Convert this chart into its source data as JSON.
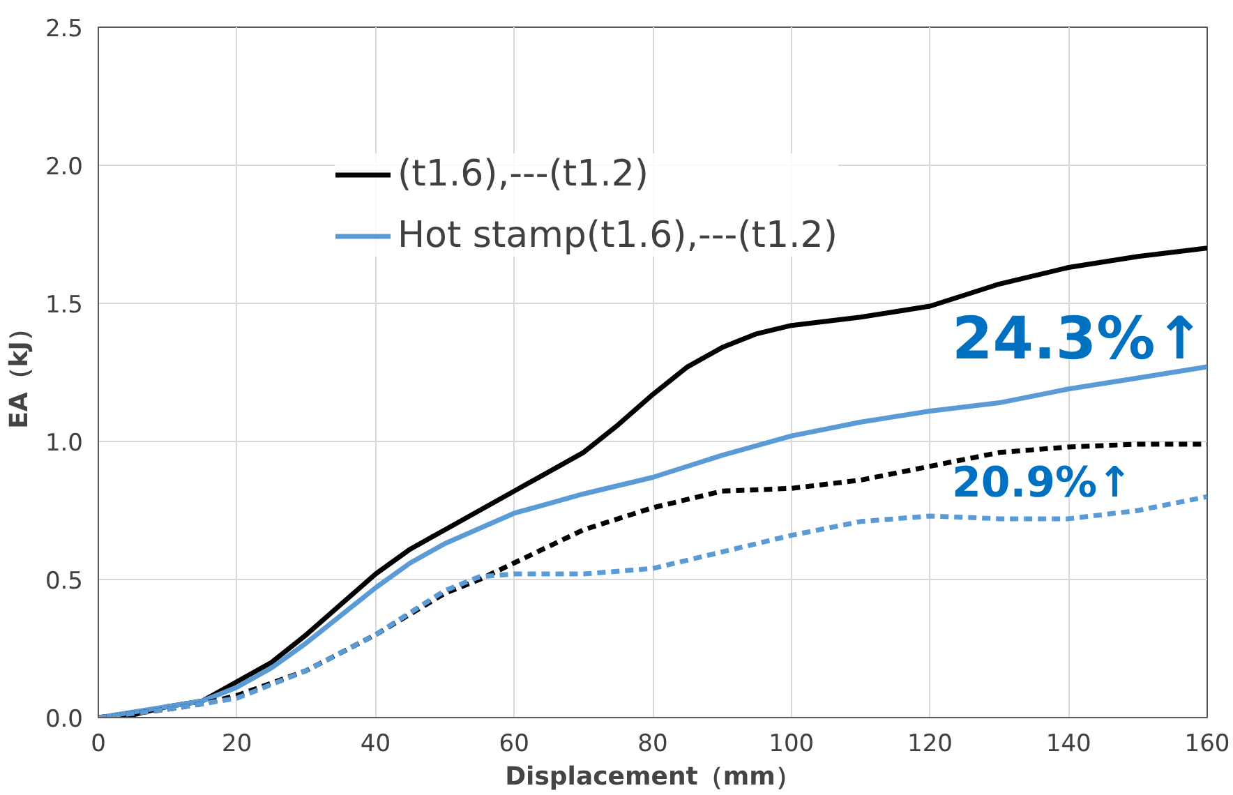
{
  "chart_data": {
    "type": "line",
    "xlabel": "Displacement（mm）",
    "ylabel": "EA（kJ）",
    "xlim": [
      0,
      160
    ],
    "xticks": [
      0,
      20,
      40,
      60,
      80,
      100,
      120,
      140,
      160
    ],
    "ylim": [
      0,
      2.5
    ],
    "yticks": [
      {
        "value": 0,
        "label": "0.0"
      },
      {
        "value": 0.5,
        "label": "0.5"
      },
      {
        "value": 1,
        "label": "1.0"
      },
      {
        "value": 1.5,
        "label": "1.5"
      },
      {
        "value": 2,
        "label": "2.0"
      },
      {
        "value": 2.5,
        "label": "2.5"
      }
    ],
    "grid": true,
    "legend": "top left",
    "annotations": [
      "24.3%↑",
      "20.9%↑"
    ],
    "series": [
      {
        "name": "(t1.6),---(t1.2)",
        "color": "#000000",
        "line_style": "solid",
        "x": [
          0,
          5,
          10,
          15,
          20,
          25,
          30,
          35,
          40,
          45,
          50,
          60,
          70,
          75,
          80,
          85,
          90,
          95,
          100,
          110,
          120,
          130,
          140,
          150,
          160
        ],
        "values": [
          0,
          0.01,
          0.04,
          0.06,
          0.13,
          0.2,
          0.3,
          0.41,
          0.52,
          0.61,
          0.68,
          0.82,
          0.96,
          1.06,
          1.17,
          1.27,
          1.34,
          1.39,
          1.42,
          1.45,
          1.49,
          1.57,
          1.63,
          1.67,
          1.7
        ]
      },
      {
        "name": "Hot stamp(t1.6),---(t1.2)",
        "color": "#5b9bd5",
        "line_style": "solid",
        "x": [
          0,
          10,
          15,
          20,
          25,
          30,
          35,
          40,
          45,
          50,
          60,
          70,
          80,
          90,
          100,
          110,
          120,
          130,
          140,
          150,
          160
        ],
        "values": [
          0,
          0.04,
          0.06,
          0.11,
          0.18,
          0.27,
          0.37,
          0.47,
          0.56,
          0.63,
          0.74,
          0.81,
          0.87,
          0.95,
          1.02,
          1.07,
          1.11,
          1.14,
          1.19,
          1.23,
          1.27
        ]
      },
      {
        "color": "#000000",
        "line_style": "dashed",
        "x": [
          0,
          10,
          15,
          20,
          30,
          40,
          50,
          55,
          60,
          70,
          80,
          90,
          100,
          110,
          120,
          130,
          140,
          150,
          160
        ],
        "values": [
          0,
          0.03,
          0.05,
          0.08,
          0.17,
          0.3,
          0.45,
          0.5,
          0.56,
          0.68,
          0.76,
          0.82,
          0.83,
          0.86,
          0.91,
          0.96,
          0.98,
          0.99,
          0.99
        ]
      },
      {
        "color": "#5b9bd5",
        "line_style": "dashed",
        "x": [
          0,
          10,
          20,
          30,
          40,
          50,
          55,
          60,
          70,
          80,
          90,
          100,
          110,
          120,
          130,
          140,
          150,
          160
        ],
        "values": [
          0,
          0.03,
          0.07,
          0.17,
          0.3,
          0.46,
          0.51,
          0.52,
          0.52,
          0.54,
          0.6,
          0.66,
          0.71,
          0.73,
          0.72,
          0.72,
          0.75,
          0.8
        ]
      }
    ]
  }
}
